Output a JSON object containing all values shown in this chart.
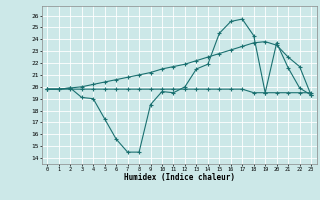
{
  "xlabel": "Humidex (Indice chaleur)",
  "bg_color": "#cce8e8",
  "grid_color": "#ffffff",
  "line_color": "#1a7070",
  "x_ticks": [
    0,
    1,
    2,
    3,
    4,
    5,
    6,
    7,
    8,
    9,
    10,
    11,
    12,
    13,
    14,
    15,
    16,
    17,
    18,
    19,
    20,
    21,
    22,
    23
  ],
  "y_ticks": [
    14,
    15,
    16,
    17,
    18,
    19,
    20,
    21,
    22,
    23,
    24,
    25,
    26
  ],
  "ylim": [
    13.5,
    26.8
  ],
  "xlim": [
    -0.5,
    23.5
  ],
  "line1_x": [
    0,
    1,
    2,
    3,
    4,
    5,
    6,
    7,
    8,
    9,
    10,
    11,
    12,
    13,
    14,
    15,
    16,
    17,
    18,
    19,
    20,
    21,
    22,
    23
  ],
  "line1_y": [
    19.8,
    19.8,
    19.8,
    19.8,
    19.8,
    19.8,
    19.8,
    19.8,
    19.8,
    19.8,
    19.8,
    19.8,
    19.8,
    19.8,
    19.8,
    19.8,
    19.8,
    19.8,
    19.5,
    19.5,
    19.5,
    19.5,
    19.5,
    19.5
  ],
  "line2_x": [
    0,
    1,
    2,
    3,
    4,
    5,
    6,
    7,
    8,
    9,
    10,
    11,
    12,
    13,
    14,
    15,
    16,
    17,
    18,
    19,
    20,
    21,
    22,
    23
  ],
  "line2_y": [
    19.8,
    19.8,
    19.9,
    20.0,
    20.2,
    20.4,
    20.6,
    20.8,
    21.0,
    21.2,
    21.5,
    21.7,
    21.9,
    22.2,
    22.5,
    22.8,
    23.1,
    23.4,
    23.7,
    23.8,
    23.5,
    22.5,
    21.7,
    19.3
  ],
  "line3_x": [
    0,
    1,
    2,
    3,
    4,
    5,
    6,
    7,
    8,
    9,
    10,
    11,
    12,
    13,
    14,
    15,
    16,
    17,
    18,
    19,
    20,
    21,
    22,
    23
  ],
  "line3_y": [
    19.8,
    19.8,
    19.9,
    19.1,
    19.0,
    17.3,
    15.6,
    14.5,
    14.5,
    18.5,
    19.6,
    19.5,
    20.0,
    21.5,
    21.9,
    24.5,
    25.5,
    25.7,
    24.3,
    19.5,
    23.7,
    21.6,
    19.9,
    19.3
  ]
}
